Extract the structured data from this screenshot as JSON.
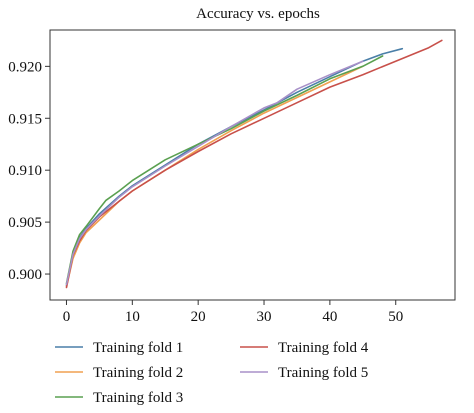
{
  "chart_data": {
    "type": "line",
    "title": "Accuracy vs. epochs",
    "xlabel": "",
    "ylabel": "",
    "xlim": [
      -2.5,
      59
    ],
    "ylim": [
      0.8975,
      0.9235
    ],
    "xticks": [
      0,
      10,
      20,
      30,
      40,
      50
    ],
    "yticks": [
      0.9,
      0.905,
      0.91,
      0.915,
      0.92
    ],
    "ytick_labels": [
      "0.900",
      "0.905",
      "0.910",
      "0.915",
      "0.920"
    ],
    "grid": false,
    "legend_position": "bottom",
    "series": [
      {
        "name": "Training fold 1",
        "color": "#4a7fa8",
        "x": [
          0,
          1,
          2,
          3,
          5,
          8,
          10,
          15,
          20,
          25,
          30,
          35,
          40,
          45,
          48,
          51
        ],
        "y": [
          0.8989,
          0.902,
          0.9035,
          0.9044,
          0.9058,
          0.9075,
          0.9085,
          0.9105,
          0.9125,
          0.9142,
          0.9158,
          0.9175,
          0.919,
          0.9205,
          0.9212,
          0.9217
        ]
      },
      {
        "name": "Training fold 2",
        "color": "#f0a050",
        "x": [
          0,
          1,
          2,
          3,
          5,
          8,
          10,
          15,
          20,
          25,
          30,
          35,
          40,
          45
        ],
        "y": [
          0.8988,
          0.9015,
          0.903,
          0.904,
          0.9052,
          0.907,
          0.908,
          0.91,
          0.912,
          0.9138,
          0.9155,
          0.917,
          0.9185,
          0.92
        ]
      },
      {
        "name": "Training fold 3",
        "color": "#5aa050",
        "x": [
          0,
          1,
          2,
          3,
          5,
          6,
          8,
          10,
          15,
          20,
          25,
          30,
          35,
          40,
          45,
          48
        ],
        "y": [
          0.8991,
          0.9022,
          0.9038,
          0.9046,
          0.9063,
          0.9071,
          0.908,
          0.909,
          0.911,
          0.9125,
          0.914,
          0.9157,
          0.9172,
          0.9188,
          0.92,
          0.921
        ]
      },
      {
        "name": "Training fold 4",
        "color": "#c8504a",
        "x": [
          0,
          1,
          2,
          3,
          5,
          8,
          10,
          15,
          20,
          25,
          30,
          35,
          40,
          45,
          50,
          55,
          57
        ],
        "y": [
          0.8987,
          0.9018,
          0.9032,
          0.9042,
          0.9055,
          0.907,
          0.908,
          0.91,
          0.9118,
          0.9135,
          0.915,
          0.9165,
          0.918,
          0.9192,
          0.9205,
          0.9218,
          0.9225
        ]
      },
      {
        "name": "Training fold 5",
        "color": "#a890c8",
        "x": [
          0,
          1,
          2,
          3,
          5,
          8,
          10,
          15,
          20,
          25,
          30,
          32,
          35,
          40,
          45
        ],
        "y": [
          0.899,
          0.9019,
          0.9034,
          0.9043,
          0.9056,
          0.9074,
          0.9084,
          0.9104,
          0.9123,
          0.9142,
          0.916,
          0.9165,
          0.9178,
          0.9192,
          0.9205
        ]
      }
    ]
  }
}
